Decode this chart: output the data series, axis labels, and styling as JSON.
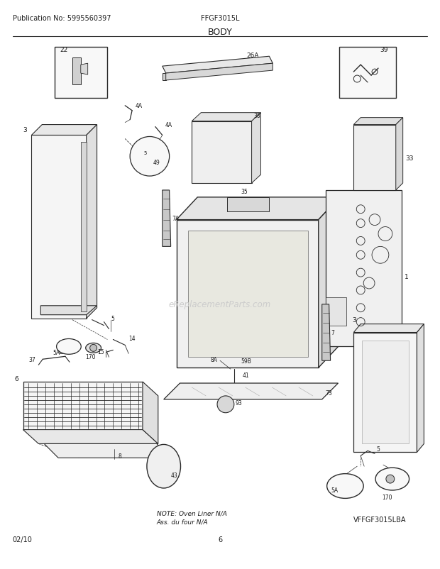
{
  "bg_color": "#ffffff",
  "fig_width": 6.2,
  "fig_height": 8.03,
  "dpi": 100,
  "header_pub": "Publication No: 5995560397",
  "header_model": "FFGF3015L",
  "header_title": "BODY",
  "footer_date": "02/10",
  "footer_page": "6",
  "footer_note1": "NOTE: Oven Liner N/A",
  "footer_note2": "Ass. du four N/A",
  "footer_model2": "VFFGF3015LBA",
  "text_color": "#1a1a1a",
  "line_color": "#2a2a2a",
  "watermark_color": "#cccccc",
  "font_size_header": 7,
  "font_size_title": 9,
  "font_size_footer": 7,
  "font_size_label": 6.5,
  "font_size_label_sm": 5.5
}
